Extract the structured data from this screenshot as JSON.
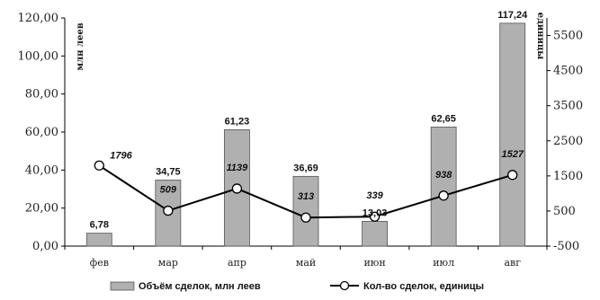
{
  "chart_data": {
    "type": "bar",
    "categories": [
      "фев",
      "мар",
      "апр",
      "май",
      "июн",
      "июл",
      "авг"
    ],
    "series": [
      {
        "name": "Объём сделок, млн леев",
        "type": "bar",
        "axis": "left",
        "values": [
          6.78,
          34.75,
          61.23,
          36.69,
          13.03,
          62.65,
          117.24
        ],
        "labels": [
          "6,78",
          "34,75",
          "61,23",
          "36,69",
          "13,03",
          "62,65",
          "117,24"
        ],
        "color": "#b0b0b0"
      },
      {
        "name": "Кол-во сделок, единицы",
        "type": "line",
        "axis": "right",
        "values": [
          1796,
          509,
          1139,
          313,
          339,
          938,
          1527
        ],
        "labels": [
          "1796",
          "509",
          "1139",
          "313",
          "339",
          "938",
          "1527"
        ],
        "color": "#000000"
      }
    ],
    "ylabel": "млн леев",
    "y2label": "единицы",
    "ylim": [
      0,
      120
    ],
    "y2lim": [
      -500,
      6000
    ],
    "yticks": [
      "0,00",
      "20,00",
      "40,00",
      "60,00",
      "80,00",
      "100,00",
      "120,00"
    ],
    "y2ticks": [
      "-500",
      "500",
      "1500",
      "2500",
      "3500",
      "4500",
      "5500"
    ],
    "legend": "bottom",
    "grid": false
  }
}
